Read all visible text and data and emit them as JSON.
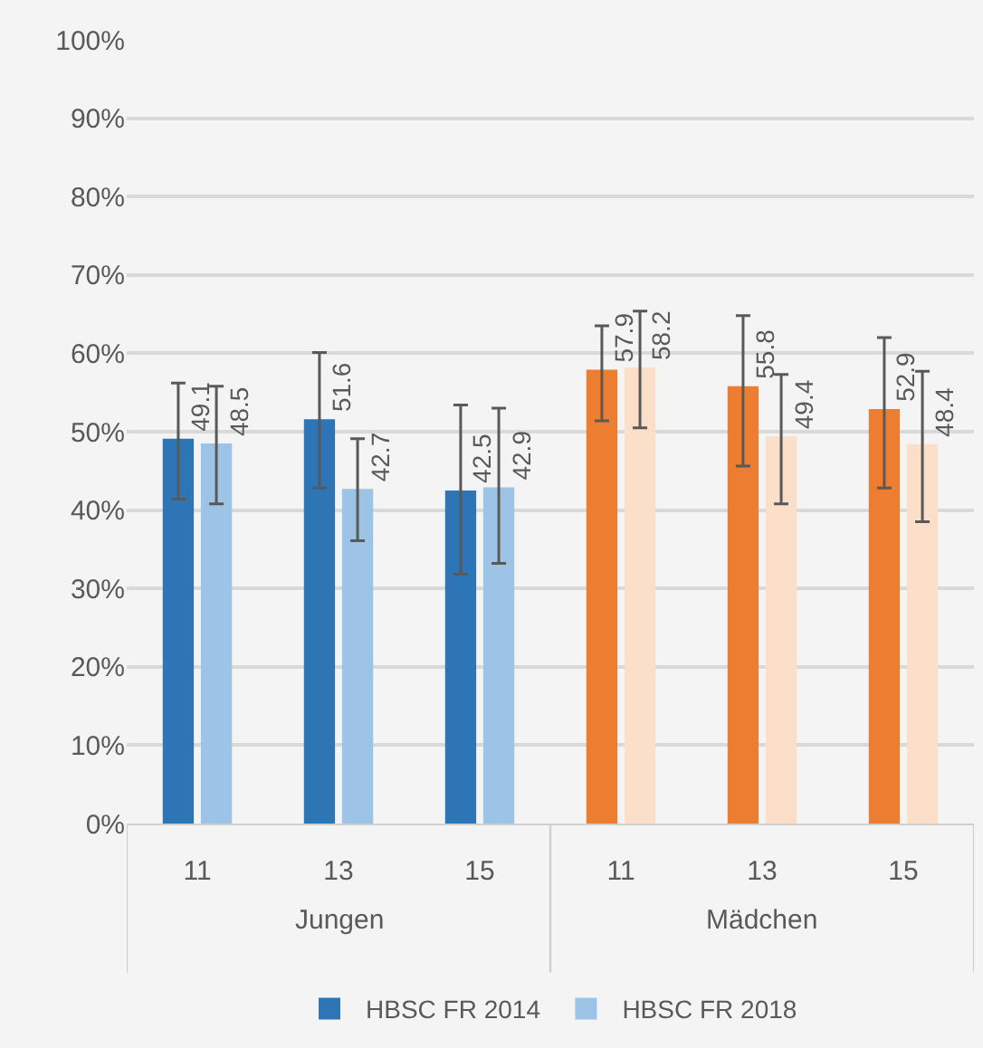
{
  "chart_data": {
    "type": "bar",
    "categories": [
      "11",
      "13",
      "15",
      "11",
      "13",
      "15"
    ],
    "annotations": [
      "Jungen",
      "Mädchen"
    ],
    "series": [
      {
        "name": "HBSC FR 2014",
        "colors": [
          "#2e75b6",
          "#2e75b6",
          "#2e75b6",
          "#ed7d31",
          "#ed7d31",
          "#ed7d31"
        ],
        "values": [
          49.1,
          51.6,
          42.5,
          57.9,
          55.8,
          52.9
        ],
        "errors": [
          [
            41.4,
            56.2
          ],
          [
            42.8,
            60.1
          ],
          [
            31.8,
            53.4
          ],
          [
            51.4,
            63.5
          ],
          [
            45.6,
            64.8
          ],
          [
            42.8,
            62.0
          ]
        ]
      },
      {
        "name": "HBSC FR 2018",
        "colors": [
          "#9dc3e6",
          "#9dc3e6",
          "#9dc3e6",
          "#fbdfc9",
          "#fbdfc9",
          "#fbdfc9"
        ],
        "values": [
          48.5,
          42.7,
          42.9,
          58.2,
          49.4,
          48.4
        ],
        "errors": [
          [
            40.8,
            55.8
          ],
          [
            36.1,
            49.1
          ],
          [
            33.2,
            53.0
          ],
          [
            50.5,
            65.4
          ],
          [
            40.8,
            57.3
          ],
          [
            38.5,
            57.7
          ]
        ]
      }
    ],
    "ylim": [
      0,
      100
    ],
    "yticks": [
      {
        "value": 0,
        "label": "0%"
      },
      {
        "value": 10,
        "label": "10%"
      },
      {
        "value": 20,
        "label": "20%"
      },
      {
        "value": 30,
        "label": "30%"
      },
      {
        "value": 40,
        "label": "40%"
      },
      {
        "value": 50,
        "label": "50%"
      },
      {
        "value": 60,
        "label": "60%"
      },
      {
        "value": 70,
        "label": "70%"
      },
      {
        "value": 80,
        "label": "80%"
      },
      {
        "value": 90,
        "label": "90%"
      },
      {
        "value": 100,
        "label": "100%"
      }
    ],
    "grid": "y",
    "legend": "bottom",
    "data_labels": true
  }
}
